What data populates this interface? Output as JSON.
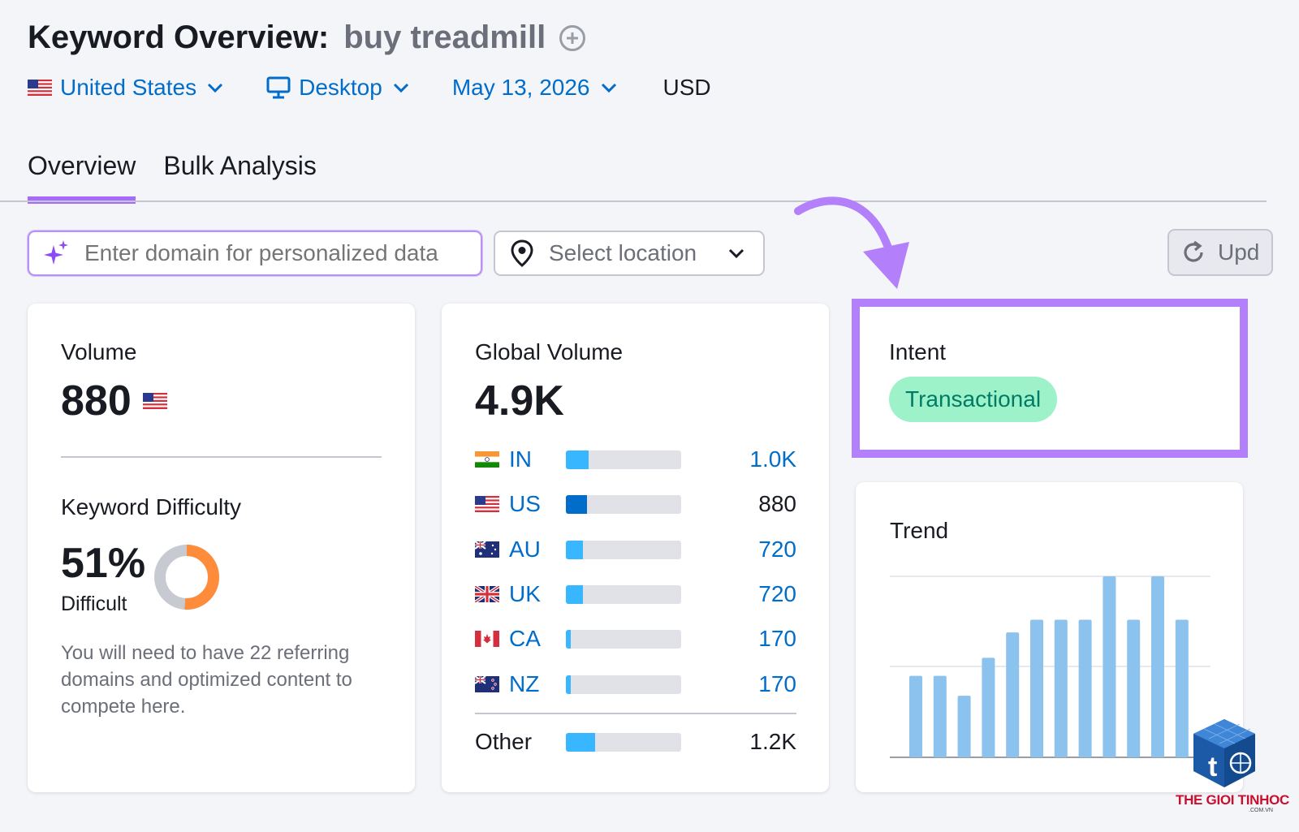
{
  "header": {
    "title": "Keyword Overview:",
    "keyword": "buy treadmill"
  },
  "filters": {
    "country": "United States",
    "device": "Desktop",
    "date": "May 13, 2026",
    "currency": "USD"
  },
  "tabs": [
    {
      "label": "Overview",
      "active": true
    },
    {
      "label": "Bulk Analysis",
      "active": false
    }
  ],
  "toolbar": {
    "domain_placeholder": "Enter domain for personalized data",
    "location_placeholder": "Select location",
    "update_label": "Upd"
  },
  "volume_card": {
    "label": "Volume",
    "value": "880",
    "kd_label": "Keyword Difficulty",
    "kd_value": "51%",
    "kd_percent": 51,
    "kd_level": "Difficult",
    "kd_description": "You will need to have 22 referring domains and optimized content to compete here."
  },
  "global_card": {
    "label": "Global Volume",
    "value": "4.9K",
    "countries": [
      {
        "code": "IN",
        "value": "1.0K",
        "share": 0.2,
        "link": true
      },
      {
        "code": "US",
        "value": "880",
        "share": 0.18,
        "link": false
      },
      {
        "code": "AU",
        "value": "720",
        "share": 0.15,
        "link": true
      },
      {
        "code": "UK",
        "value": "720",
        "share": 0.15,
        "link": true
      },
      {
        "code": "CA",
        "value": "170",
        "share": 0.04,
        "link": true
      },
      {
        "code": "NZ",
        "value": "170",
        "share": 0.04,
        "link": true
      }
    ],
    "other": {
      "label": "Other",
      "value": "1.2K",
      "share": 0.25
    }
  },
  "intent_card": {
    "label": "Intent",
    "badge": "Transactional"
  },
  "trend_card": {
    "label": "Trend"
  },
  "chart_data": {
    "type": "bar",
    "title": "Trend",
    "xlabel": "",
    "ylabel": "",
    "ylim": [
      0,
      1
    ],
    "grid": true,
    "values": [
      0.45,
      0.45,
      0.34,
      0.55,
      0.69,
      0.76,
      0.76,
      0.76,
      1.0,
      0.76,
      1.0,
      0.76
    ]
  },
  "watermark": {
    "text": "THE GIOI TINHOC",
    "sub": ".COM.VN"
  },
  "colors": {
    "accent": "#a56bfa",
    "link": "#006dca",
    "bar_light": "#38b6ff",
    "bar_dark": "#006dca",
    "intent_bg": "#9ef2c9",
    "intent_text": "#007c65",
    "kd_orange": "#ff8c3b",
    "trend_bar": "#8bc2ee"
  }
}
